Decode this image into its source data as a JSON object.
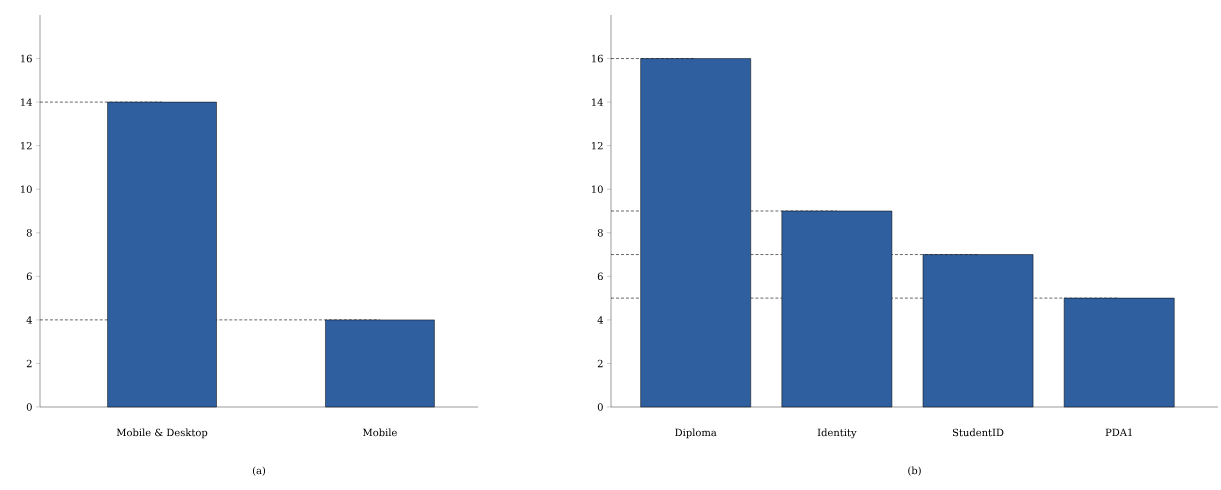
{
  "chart_data": [
    {
      "type": "bar",
      "title": "(a)",
      "categories": [
        "Mobile & Desktop",
        "Mobile"
      ],
      "values": [
        14,
        4
      ],
      "color": "#2f5f9e",
      "ylim": [
        0,
        18
      ],
      "yticks": [
        0,
        2,
        4,
        6,
        8,
        10,
        12,
        14,
        16
      ],
      "grid": false,
      "ref_lines": [
        {
          "axis": "y",
          "value": 14,
          "line_style": "dashed"
        },
        {
          "axis": "y",
          "value": 4,
          "line_style": "dashed"
        }
      ]
    },
    {
      "type": "bar",
      "title": "(b)",
      "categories": [
        "Diploma",
        "Identity",
        "StudentID",
        "PDA1"
      ],
      "values": [
        16,
        9,
        7,
        5
      ],
      "color": "#2f5f9e",
      "ylim": [
        0,
        18
      ],
      "yticks": [
        0,
        2,
        4,
        6,
        8,
        10,
        12,
        14,
        16
      ],
      "grid": false,
      "ref_lines": [
        {
          "axis": "y",
          "value": 16,
          "line_style": "dashed"
        },
        {
          "axis": "y",
          "value": 9,
          "line_style": "dashed"
        },
        {
          "axis": "y",
          "value": 7,
          "line_style": "dashed"
        },
        {
          "axis": "y",
          "value": 5,
          "line_style": "dashed"
        }
      ]
    }
  ]
}
